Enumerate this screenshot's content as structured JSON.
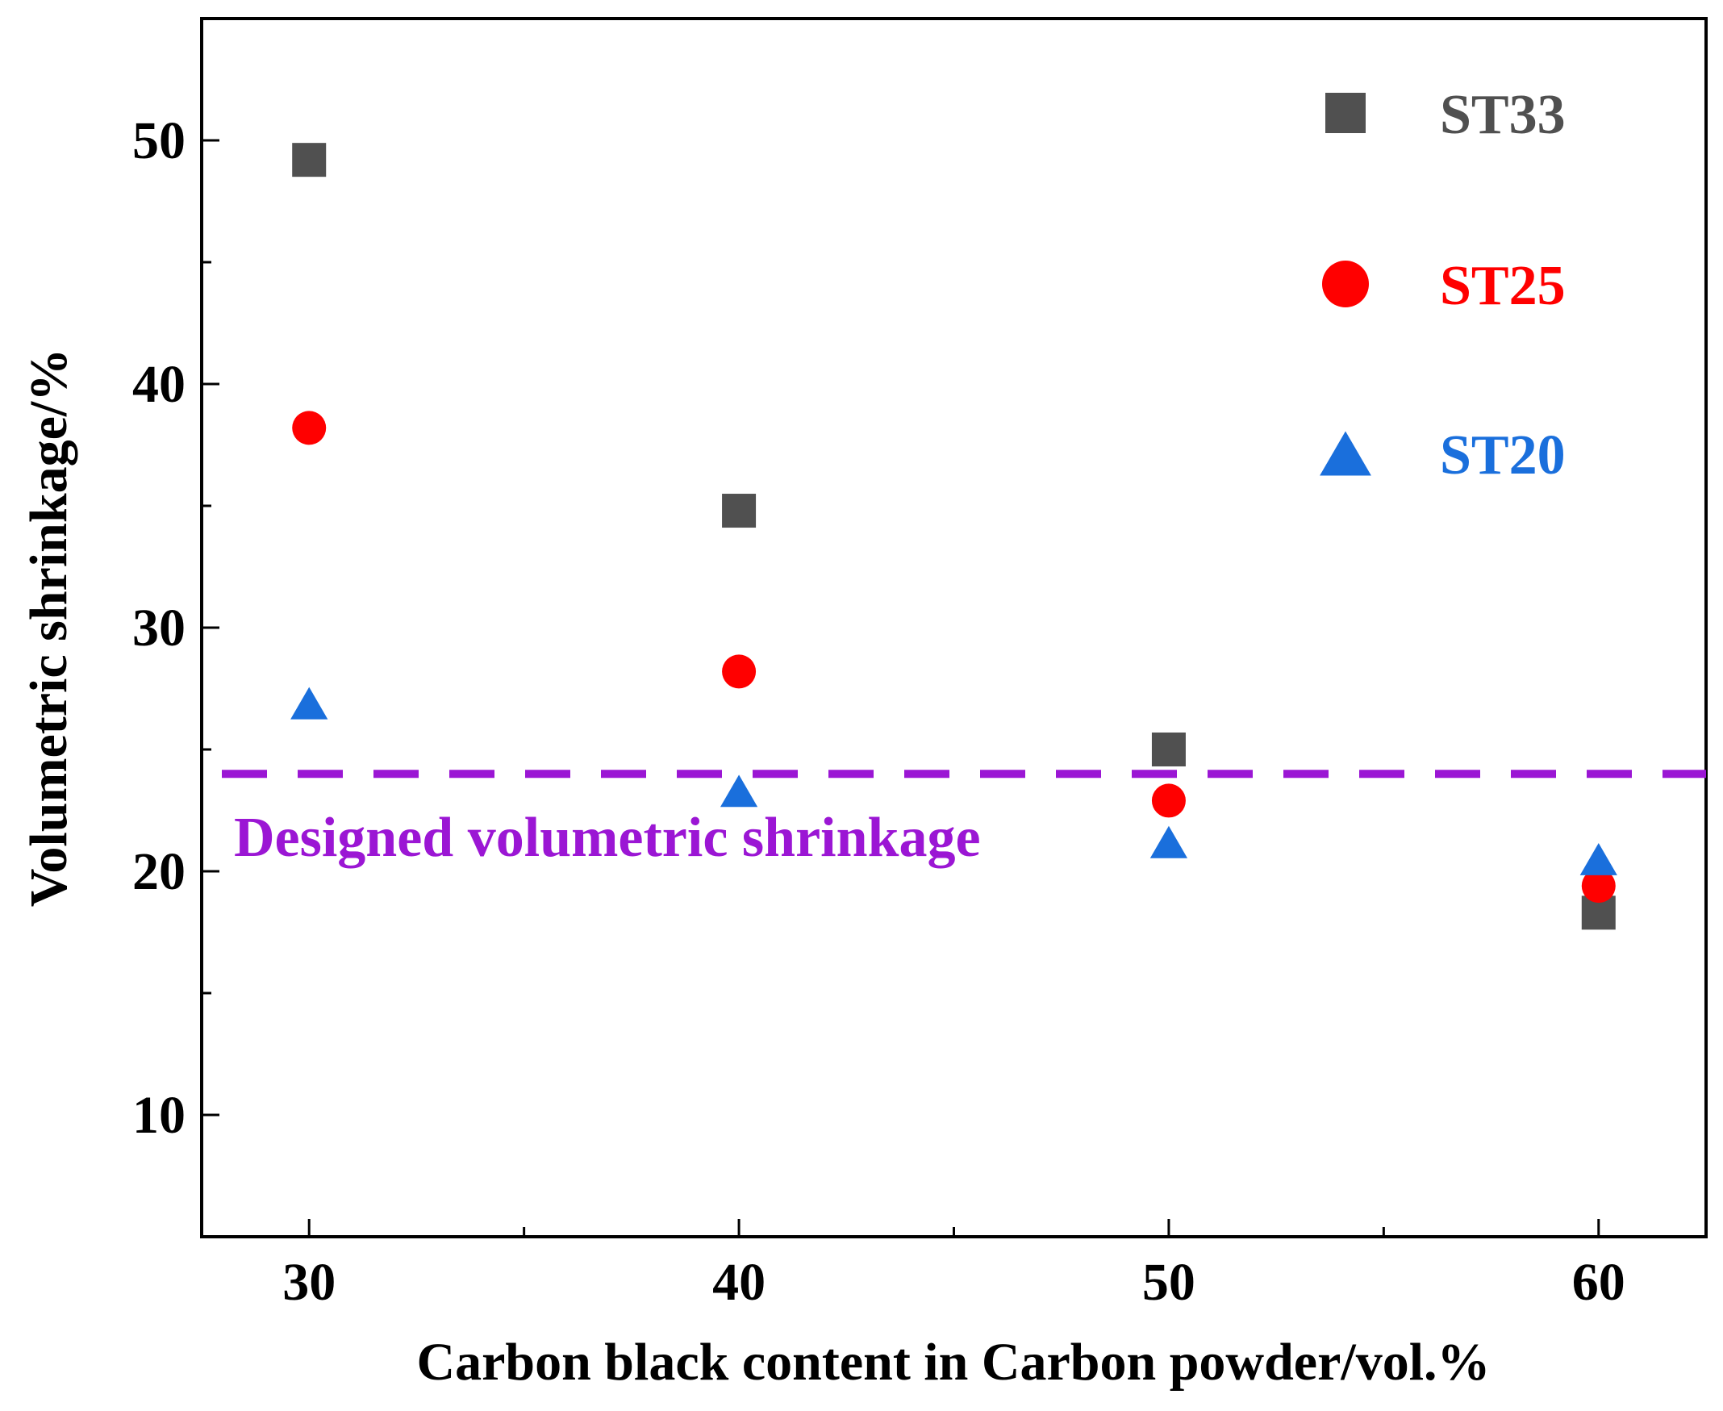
{
  "chart_data": {
    "type": "scatter",
    "title": "",
    "xlabel": "Carbon black content in Carbon powder/vol.%",
    "ylabel": "Volumetric shrinkage/%",
    "xlim": [
      27.5,
      62.5
    ],
    "ylim": [
      5,
      55
    ],
    "xticks": [
      30,
      40,
      50,
      60
    ],
    "xminor": [
      35,
      45,
      55
    ],
    "yticks": [
      10,
      20,
      30,
      40,
      50
    ],
    "yminor": [
      15,
      25,
      35,
      45
    ],
    "series": [
      {
        "name": "ST33",
        "marker": "square",
        "color": "#505050",
        "x": [
          30,
          40,
          50,
          60
        ],
        "y": [
          49.2,
          34.8,
          25.0,
          18.3
        ]
      },
      {
        "name": "ST25",
        "marker": "circle",
        "color": "#ff0000",
        "x": [
          30,
          40,
          50,
          60
        ],
        "y": [
          38.2,
          28.2,
          22.9,
          19.4
        ]
      },
      {
        "name": "ST20",
        "marker": "triangle",
        "color": "#1a6fdc",
        "x": [
          30,
          40,
          50,
          60
        ],
        "y": [
          26.9,
          23.3,
          21.2,
          20.5
        ]
      }
    ],
    "reference_line": {
      "y": 24.0,
      "style": "dashed",
      "color": "#9b16d4",
      "label": "Designed volumetric shrinkage"
    },
    "legend_position": "top-right",
    "grid": false
  }
}
